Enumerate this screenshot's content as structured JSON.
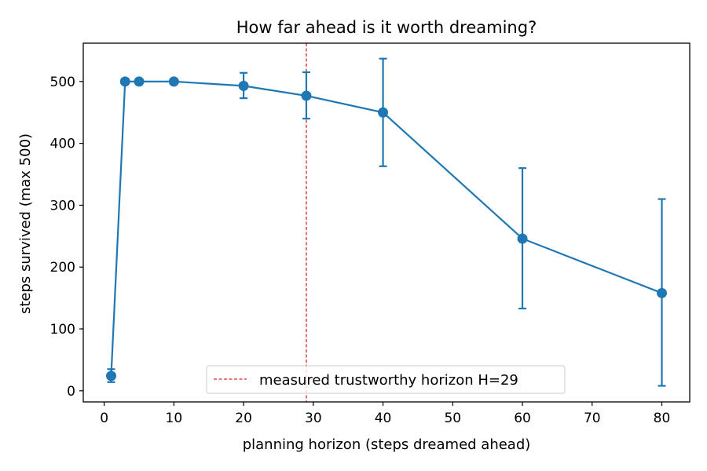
{
  "chart_data": {
    "type": "line",
    "title": "How far ahead is it worth dreaming?",
    "xlabel": "planning horizon (steps dreamed ahead)",
    "ylabel": "steps survived (max 500)",
    "xlim": [
      -3,
      84
    ],
    "ylim": [
      -18,
      562
    ],
    "x_ticks": [
      0,
      10,
      20,
      30,
      40,
      50,
      60,
      70,
      80
    ],
    "y_ticks": [
      0,
      100,
      200,
      300,
      400,
      500
    ],
    "grid": false,
    "series": [
      {
        "name": "",
        "color": "#1f77b4",
        "points": [
          {
            "x": 1,
            "y": 24,
            "err_low": 14,
            "err_high": 35
          },
          {
            "x": 3,
            "y": 500,
            "err_low": 500,
            "err_high": 500
          },
          {
            "x": 5,
            "y": 500,
            "err_low": 500,
            "err_high": 500
          },
          {
            "x": 10,
            "y": 500,
            "err_low": 500,
            "err_high": 500
          },
          {
            "x": 20,
            "y": 493,
            "err_low": 473,
            "err_high": 514
          },
          {
            "x": 29,
            "y": 477,
            "err_low": 440,
            "err_high": 515
          },
          {
            "x": 40,
            "y": 450,
            "err_low": 363,
            "err_high": 537
          },
          {
            "x": 60,
            "y": 246,
            "err_low": 133,
            "err_high": 360
          },
          {
            "x": 80,
            "y": 158,
            "err_low": 8,
            "err_high": 310
          }
        ]
      }
    ],
    "reference_line": {
      "x": 29,
      "label": "measured trustworthy horizon H=29",
      "color": "#d62728",
      "style": "dashed"
    },
    "legend_position": "bottom-center"
  }
}
